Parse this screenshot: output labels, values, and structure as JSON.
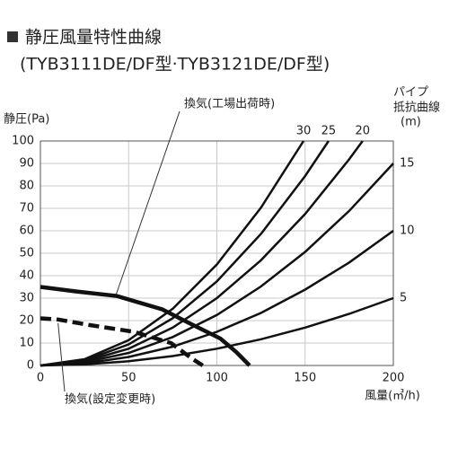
{
  "chart_data": {
    "type": "line",
    "title": "静圧風量特性曲線",
    "subtitle": "(TYB3111DE/DF型·TYB3121DE/DF型)",
    "y_label": "静圧(Pa)",
    "x_label": "風量(㎥/h)",
    "legend_title": [
      "パイプ",
      "抵抗曲線",
      "(m)"
    ],
    "xlim": [
      0,
      200
    ],
    "xticks": [
      0,
      50,
      100,
      150,
      200
    ],
    "ylim": [
      0,
      100
    ],
    "yticks": [
      0,
      10,
      20,
      30,
      40,
      50,
      60,
      70,
      80,
      90,
      100
    ],
    "grid": true,
    "series": [
      {
        "name": "5",
        "color": "#111111",
        "x": [
          0,
          25,
          50,
          75,
          100,
          125,
          150,
          175,
          200
        ],
        "values": [
          0,
          0.5,
          1.9,
          4.2,
          7.5,
          11.7,
          16.9,
          23,
          30
        ]
      },
      {
        "name": "10",
        "color": "#111111",
        "x": [
          0,
          25,
          50,
          75,
          100,
          125,
          150,
          175,
          200
        ],
        "values": [
          0,
          0.9,
          3.8,
          8.4,
          15,
          23.4,
          33.8,
          45.9,
          60
        ]
      },
      {
        "name": "15",
        "color": "#111111",
        "x": [
          0,
          25,
          50,
          75,
          100,
          125,
          150,
          175,
          200
        ],
        "values": [
          0,
          1.4,
          5.6,
          12.7,
          22.5,
          35.2,
          50.6,
          68.9,
          90
        ]
      },
      {
        "name": "20",
        "color": "#111111",
        "x": [
          0,
          25,
          50,
          75,
          100,
          125,
          150,
          175,
          182.6
        ],
        "values": [
          0,
          1.9,
          7.5,
          16.9,
          30,
          46.9,
          67.5,
          91.9,
          100
        ]
      },
      {
        "name": "25",
        "color": "#111111",
        "x": [
          0,
          25,
          50,
          75,
          100,
          125,
          150,
          163.3
        ],
        "values": [
          0,
          2.3,
          9.4,
          21.1,
          37.5,
          58.6,
          84.4,
          100
        ]
      },
      {
        "name": "30",
        "color": "#111111",
        "x": [
          0,
          25,
          50,
          75,
          100,
          125,
          149.1
        ],
        "values": [
          0,
          2.8,
          11.3,
          25.3,
          45,
          70.3,
          100
        ]
      }
    ],
    "fan_curves": [
      {
        "name": "換気(工場出荷時)",
        "color": "#111111",
        "style": "solid",
        "x": [
          0,
          20,
          43,
          69,
          84,
          102,
          111,
          118.5
        ],
        "values": [
          35,
          33,
          31,
          25,
          19,
          12,
          6,
          0
        ]
      },
      {
        "name": "換気(設定変更時)",
        "color": "#111111",
        "style": "dashed",
        "x": [
          0,
          10,
          28,
          53,
          74,
          86,
          92
        ],
        "values": [
          21,
          20.5,
          18,
          15,
          10,
          3,
          0
        ]
      }
    ]
  }
}
